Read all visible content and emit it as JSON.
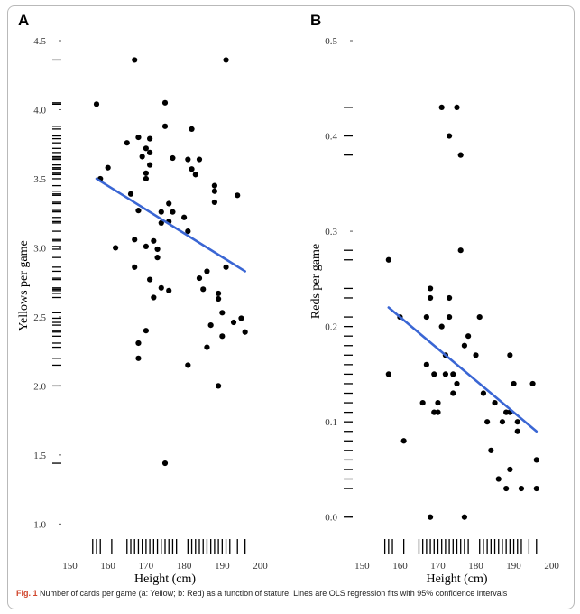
{
  "caption": {
    "label": "Fig. 1",
    "text": "Number of cards per game (a: Yellow; b: Red) as a function of stature. Lines are OLS regression fits with 95% confidence intervals"
  },
  "colors": {
    "points": "#000000",
    "fit": "#3a66d4",
    "rug": "#000000"
  },
  "chart_data": [
    {
      "type": "scatter",
      "panel": "A",
      "xlabel": "Height (cm)",
      "ylabel": "Yellows per game",
      "xlim": [
        148,
        202
      ],
      "ylim": [
        0.95,
        4.5
      ],
      "xticks": [
        150,
        160,
        170,
        180,
        190,
        200
      ],
      "yticks": [
        1.0,
        1.5,
        2.0,
        2.5,
        3.0,
        3.5,
        4.0,
        4.5
      ],
      "ytick_labels": [
        "1.0",
        "1.5",
        "2.0",
        "2.5",
        "3.0",
        "3.5",
        "4.0",
        "4.5"
      ],
      "x": [
        157,
        158,
        160,
        162,
        165,
        166,
        167,
        167,
        167,
        168,
        168,
        168,
        168,
        169,
        170,
        170,
        170,
        170,
        170,
        171,
        171,
        171,
        171,
        172,
        172,
        173,
        173,
        174,
        174,
        174,
        175,
        175,
        175,
        176,
        176,
        176,
        177,
        177,
        180,
        181,
        181,
        181,
        182,
        182,
        183,
        184,
        184,
        185,
        186,
        186,
        187,
        188,
        188,
        188,
        189,
        189,
        189,
        190,
        190,
        191,
        191,
        193,
        194,
        195,
        196
      ],
      "y": [
        4.04,
        3.5,
        3.58,
        3.0,
        3.76,
        3.39,
        4.36,
        2.86,
        3.06,
        3.8,
        2.31,
        3.27,
        2.2,
        3.66,
        3.72,
        3.54,
        3.5,
        3.01,
        2.4,
        3.79,
        3.69,
        3.6,
        2.77,
        3.05,
        2.64,
        2.93,
        2.99,
        3.26,
        3.18,
        2.71,
        4.05,
        3.88,
        1.44,
        3.32,
        3.19,
        2.69,
        3.65,
        3.26,
        3.22,
        3.64,
        3.12,
        2.15,
        3.86,
        3.57,
        3.53,
        2.78,
        3.64,
        2.7,
        2.83,
        2.28,
        2.44,
        3.45,
        3.41,
        3.33,
        2.63,
        2.0,
        2.67,
        2.36,
        2.53,
        2.86,
        4.36,
        2.46,
        3.38,
        2.49,
        2.39
      ],
      "fit": {
        "x": [
          157,
          196
        ],
        "y": [
          3.5,
          2.83
        ]
      },
      "rug_x": [
        156,
        157,
        158,
        161,
        165,
        166,
        167,
        168,
        169,
        170,
        171,
        172,
        173,
        174,
        175,
        176,
        177,
        178,
        181,
        182,
        183,
        184,
        185,
        186,
        187,
        188,
        189,
        190,
        191,
        192,
        194,
        196
      ],
      "rug_y": [
        4.36,
        4.05,
        4.04,
        3.88,
        3.86,
        3.81,
        3.79,
        3.76,
        3.72,
        3.69,
        3.66,
        3.65,
        3.64,
        3.6,
        3.58,
        3.57,
        3.54,
        3.53,
        3.5,
        3.45,
        3.41,
        3.39,
        3.38,
        3.33,
        3.32,
        3.27,
        3.26,
        3.22,
        3.19,
        3.18,
        3.12,
        3.06,
        3.05,
        3.01,
        2.99,
        2.93,
        2.86,
        2.83,
        2.78,
        2.77,
        2.71,
        2.7,
        2.69,
        2.67,
        2.64,
        2.53,
        2.49,
        2.46,
        2.44,
        2.4,
        2.39,
        2.36,
        2.31,
        2.28,
        2.2,
        2.15,
        2.0,
        1.44
      ]
    },
    {
      "type": "scatter",
      "panel": "B",
      "xlabel": "Height (cm)",
      "ylabel": "Reds per game",
      "xlim": [
        148,
        202
      ],
      "ylim": [
        -0.005,
        0.5
      ],
      "xticks": [
        150,
        160,
        170,
        180,
        190,
        200
      ],
      "yticks": [
        0.0,
        0.1,
        0.2,
        0.3,
        0.4,
        0.5
      ],
      "ytick_labels": [
        "0.0",
        "0.1",
        "0.2",
        "0.3",
        "0.4",
        "0.5"
      ],
      "x": [
        157,
        157,
        160,
        161,
        166,
        167,
        167,
        168,
        168,
        168,
        169,
        169,
        170,
        170,
        171,
        171,
        172,
        172,
        173,
        173,
        173,
        174,
        174,
        175,
        175,
        176,
        176,
        177,
        177,
        178,
        180,
        181,
        182,
        183,
        184,
        185,
        186,
        187,
        188,
        188,
        189,
        189,
        189,
        190,
        191,
        191,
        192,
        195,
        196,
        196
      ],
      "y": [
        0.27,
        0.15,
        0.21,
        0.08,
        0.12,
        0.16,
        0.21,
        0.24,
        0.23,
        0.0,
        0.11,
        0.15,
        0.12,
        0.11,
        0.2,
        0.43,
        0.15,
        0.17,
        0.4,
        0.21,
        0.23,
        0.15,
        0.13,
        0.43,
        0.14,
        0.38,
        0.28,
        0.18,
        0.0,
        0.19,
        0.17,
        0.21,
        0.13,
        0.1,
        0.07,
        0.12,
        0.04,
        0.1,
        0.11,
        0.03,
        0.11,
        0.17,
        0.05,
        0.14,
        0.1,
        0.09,
        0.03,
        0.14,
        0.03,
        0.06
      ],
      "fit": {
        "x": [
          157,
          196
        ],
        "y": [
          0.22,
          0.09
        ]
      },
      "rug_x": [
        156,
        157,
        158,
        161,
        165,
        166,
        167,
        168,
        169,
        170,
        171,
        172,
        173,
        174,
        175,
        176,
        177,
        178,
        181,
        182,
        183,
        184,
        185,
        186,
        187,
        188,
        189,
        190,
        191,
        192,
        194,
        196
      ],
      "rug_y": [
        0.43,
        0.4,
        0.38,
        0.28,
        0.27,
        0.24,
        0.23,
        0.21,
        0.2,
        0.19,
        0.18,
        0.17,
        0.16,
        0.15,
        0.14,
        0.13,
        0.12,
        0.11,
        0.1,
        0.09,
        0.08,
        0.07,
        0.06,
        0.05,
        0.04,
        0.03,
        0.0
      ]
    }
  ]
}
